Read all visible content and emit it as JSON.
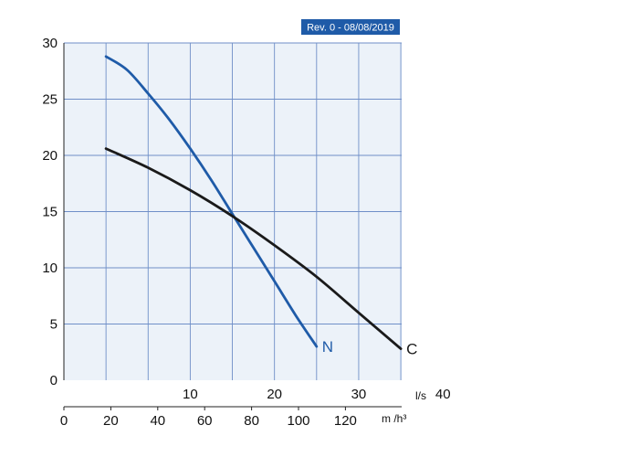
{
  "revision_badge": "Rev. 0 - 08/08/2019",
  "colors": {
    "plot_background": "#ecf2f9",
    "grid": "#6f8fc8",
    "curve_N": "#1f5ba8",
    "curve_C": "#1a1a1a",
    "badge": "#1f5ba8"
  },
  "chart_data": {
    "type": "line",
    "title": "",
    "grid": true,
    "y_axis": {
      "range": [
        0,
        30
      ],
      "ticks": [
        0,
        5,
        10,
        15,
        20,
        25,
        30
      ],
      "tick_labels": [
        "0",
        "5",
        "10",
        "15",
        "20",
        "25",
        "30"
      ],
      "label": ""
    },
    "x_axis_primary": {
      "unit": "l/s",
      "range": [
        0,
        40
      ],
      "ticks": [
        10,
        20,
        30,
        40
      ],
      "tick_labels": [
        "10",
        "20",
        "30",
        "40"
      ]
    },
    "x_axis_secondary": {
      "unit": "m /h³",
      "ticks": [
        0,
        20,
        40,
        60,
        80,
        100,
        120
      ],
      "tick_labels": [
        "0",
        "20",
        "40",
        "60",
        "80",
        "100",
        "120"
      ]
    },
    "series": [
      {
        "name": "N",
        "x_unit": "l/s",
        "points": [
          [
            0,
            28.8
          ],
          [
            2.5,
            27.6
          ],
          [
            5,
            25.5
          ],
          [
            7.5,
            23.2
          ],
          [
            10,
            20.6
          ],
          [
            12.5,
            17.8
          ],
          [
            15,
            14.8
          ],
          [
            17.5,
            11.8
          ],
          [
            20,
            8.8
          ],
          [
            22.5,
            5.8
          ],
          [
            25,
            3.0
          ]
        ]
      },
      {
        "name": "C",
        "x_unit": "l/s",
        "points": [
          [
            0,
            20.6
          ],
          [
            5,
            18.9
          ],
          [
            10,
            16.9
          ],
          [
            15,
            14.6
          ],
          [
            20,
            12.0
          ],
          [
            25,
            9.2
          ],
          [
            30,
            6.0
          ],
          [
            35,
            2.8
          ]
        ]
      }
    ]
  }
}
